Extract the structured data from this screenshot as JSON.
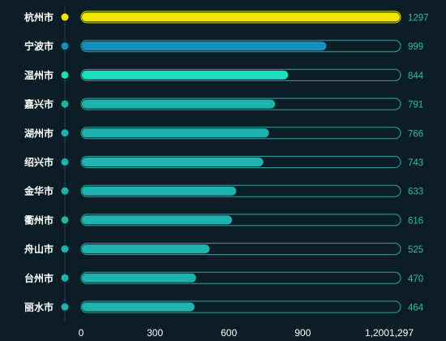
{
  "chart_data": {
    "type": "bar",
    "orientation": "horizontal",
    "categories": [
      "杭州市",
      "宁波市",
      "温州市",
      "嘉兴市",
      "湖州市",
      "绍兴市",
      "金华市",
      "衢州市",
      "舟山市",
      "台州市",
      "丽水市"
    ],
    "values": [
      1297,
      999,
      844,
      791,
      766,
      743,
      633,
      616,
      525,
      470,
      464
    ],
    "xlim": [
      0,
      1297
    ],
    "x_tick_labels": [
      "0",
      "300",
      "600",
      "900",
      "1,200",
      "1,297"
    ],
    "x_tick_values": [
      0,
      300,
      600,
      900,
      1200,
      1297
    ],
    "title": "",
    "xlabel": "",
    "ylabel": "",
    "grid": false,
    "legend": "none",
    "colors": {
      "background": "#0b1e26",
      "rank1": "#f2e600",
      "rank2": "#1a8fbf",
      "rank3": "#19e0bb",
      "others": "#1eb3ad",
      "track_border": "#2aa6a8",
      "value_text": "#2fb8b4",
      "category_text": "#ffffff",
      "axis_text": "#ffffff",
      "axis_line": "#2a4450"
    }
  }
}
